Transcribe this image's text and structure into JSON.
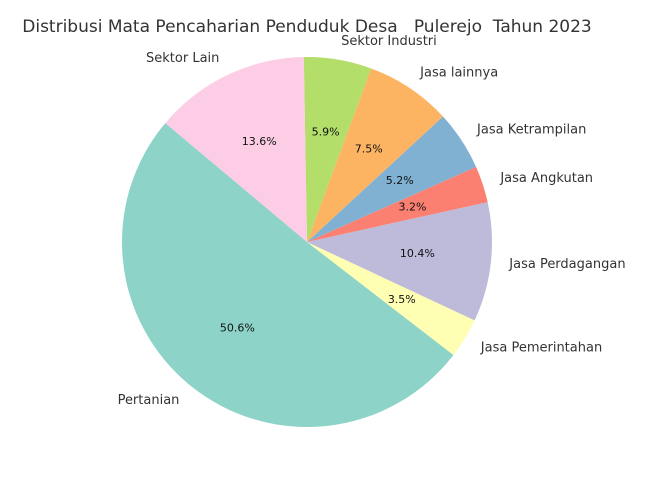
{
  "chart_data": {
    "type": "pie",
    "title": "Distribusi Mata Pencaharian Penduduk Desa   Pulerejo  Tahun 2023",
    "categories": [
      "Pertanian",
      "Jasa Pemerintahan",
      "Jasa Perdagangan",
      "Jasa Angkutan",
      "Jasa Ketrampilan",
      "Jasa lainnya",
      "Sektor Industri",
      "Sektor Lain"
    ],
    "values": [
      50.6,
      3.5,
      10.4,
      3.2,
      5.2,
      7.5,
      5.9,
      13.6
    ],
    "value_labels": [
      "50.6%",
      "3.5%",
      "10.4%",
      "3.2%",
      "5.2%",
      "7.5%",
      "5.9%",
      "13.6%"
    ],
    "colors": [
      "#8dd3c7",
      "#ffffb3",
      "#bebada",
      "#fb8072",
      "#80b1d3",
      "#fdb462",
      "#b3de69",
      "#fccde5"
    ]
  }
}
